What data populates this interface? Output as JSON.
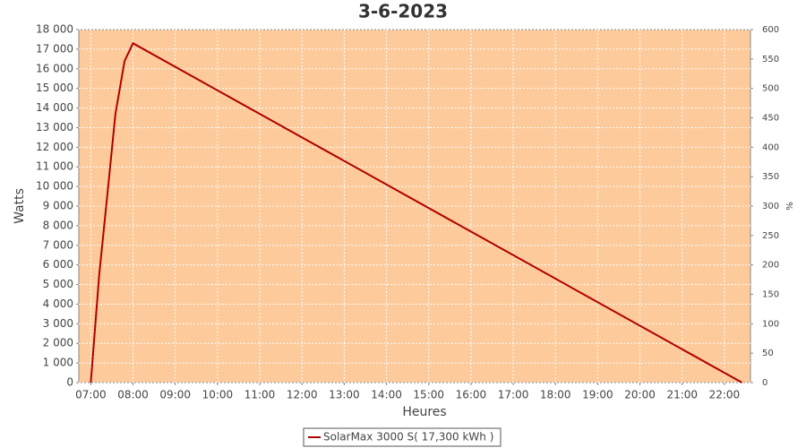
{
  "chart_data": {
    "type": "line",
    "title": "3-6-2023",
    "x_label": "Heures",
    "y_label": "Watts",
    "y2_label": "%",
    "x": [
      "07:00",
      "07:12",
      "07:25",
      "07:35",
      "07:48",
      "08:00",
      "22:25"
    ],
    "series": [
      {
        "name": "SolarMax 3000 S( 17,300 kWh )",
        "color": "#b00000",
        "values": [
          0,
          5500,
          10100,
          13700,
          16400,
          17300,
          0
        ]
      }
    ],
    "xlim": [
      "06:43",
      "22:37"
    ],
    "xticks": [
      "07:00",
      "08:00",
      "09:00",
      "10:00",
      "11:00",
      "12:00",
      "13:00",
      "14:00",
      "15:00",
      "16:00",
      "17:00",
      "18:00",
      "19:00",
      "20:00",
      "21:00",
      "22:00"
    ],
    "ylim": [
      0,
      18000
    ],
    "yticks": [
      0,
      {
        "value": 1000,
        "label": "1 000"
      },
      {
        "value": 2000,
        "label": "2 000"
      },
      {
        "value": 3000,
        "label": "3 000"
      },
      {
        "value": 4000,
        "label": "4 000"
      },
      {
        "value": 5000,
        "label": "5 000"
      },
      {
        "value": 6000,
        "label": "6 000"
      },
      {
        "value": 7000,
        "label": "7 000"
      },
      {
        "value": 8000,
        "label": "8 000"
      },
      {
        "value": 9000,
        "label": "9 000"
      },
      {
        "value": 10000,
        "label": "10 000"
      },
      {
        "value": 11000,
        "label": "11 000"
      },
      {
        "value": 12000,
        "label": "12 000"
      },
      {
        "value": 13000,
        "label": "13 000"
      },
      {
        "value": 14000,
        "label": "14 000"
      },
      {
        "value": 15000,
        "label": "15 000"
      },
      {
        "value": 16000,
        "label": "16 000"
      },
      {
        "value": 17000,
        "label": "17 000"
      },
      {
        "value": 18000,
        "label": "18 000"
      }
    ],
    "y2lim": [
      0,
      600
    ],
    "y2ticks": [
      0,
      50,
      100,
      150,
      200,
      250,
      300,
      350,
      400,
      450,
      500,
      550,
      600
    ],
    "grid": true,
    "plot_background": "#fdca9b"
  }
}
